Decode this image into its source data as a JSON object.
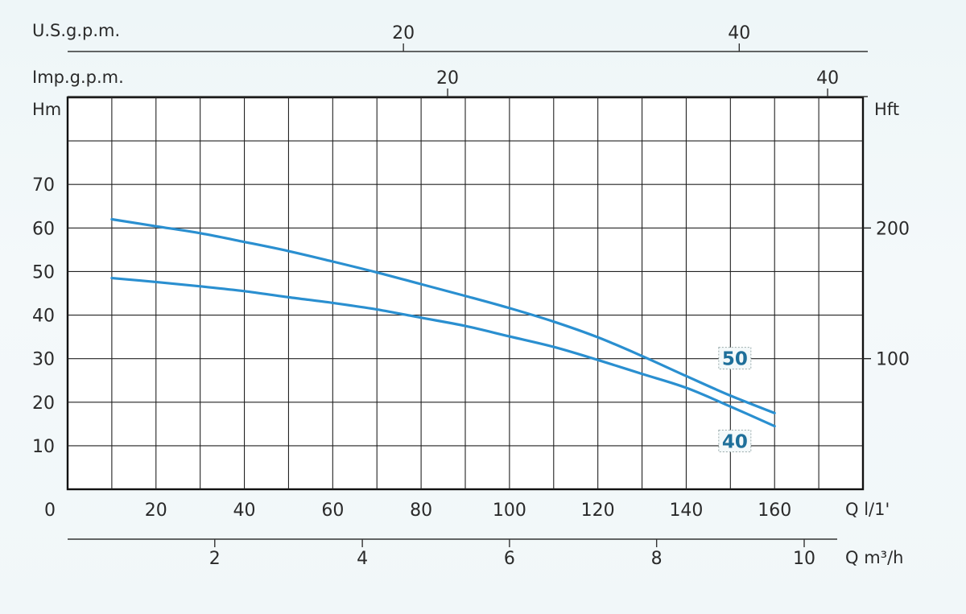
{
  "chart_data": {
    "type": "line",
    "title": "",
    "xlabel": "Q l/1'",
    "ylabel": "Hm",
    "xlim": [
      0,
      180
    ],
    "ylim": [
      0,
      90
    ],
    "y_ticks": [
      10,
      20,
      30,
      40,
      50,
      60,
      70
    ],
    "x_ticks": [
      0,
      20,
      40,
      60,
      80,
      100,
      120,
      140,
      160
    ],
    "grid": true,
    "series": [
      {
        "name": "50",
        "x": [
          10,
          20,
          30,
          40,
          50,
          60,
          70,
          80,
          90,
          100,
          110,
          120,
          130,
          140,
          150,
          160
        ],
        "values": [
          62,
          60.4,
          58.8,
          56.8,
          54.7,
          52.3,
          49.8,
          47.1,
          44.4,
          41.6,
          38.5,
          34.9,
          30.6,
          26,
          21.5,
          17.5
        ]
      },
      {
        "name": "40",
        "x": [
          10,
          20,
          30,
          40,
          50,
          60,
          70,
          80,
          90,
          100,
          110,
          120,
          130,
          140,
          150,
          160
        ],
        "values": [
          48.5,
          47.6,
          46.6,
          45.5,
          44.1,
          42.8,
          41.3,
          39.4,
          37.5,
          35.1,
          32.7,
          29.7,
          26.5,
          23.3,
          19,
          14.5
        ]
      }
    ],
    "right_axis": {
      "label": "Hft",
      "ticks": [
        {
          "value": 100,
          "at_hm": 30
        },
        {
          "value": 200,
          "at_hm": 60
        }
      ]
    },
    "top_axes": [
      {
        "label": "U.S.g.p.m.",
        "ticks": [
          {
            "value": 20,
            "at_q": 76
          },
          {
            "value": 40,
            "at_q": 152
          }
        ]
      },
      {
        "label": "Imp.g.p.m.",
        "ticks": [
          {
            "value": 20,
            "at_q": 86
          },
          {
            "value": 40,
            "at_q": 172
          }
        ]
      }
    ],
    "bottom_axis2": {
      "label": "Q m³/h",
      "ticks": [
        {
          "value": 2,
          "at_q": 33.3
        },
        {
          "value": 4,
          "at_q": 66.7
        },
        {
          "value": 6,
          "at_q": 100
        },
        {
          "value": 8,
          "at_q": 133.3
        },
        {
          "value": 10,
          "at_q": 166.7
        }
      ]
    }
  }
}
